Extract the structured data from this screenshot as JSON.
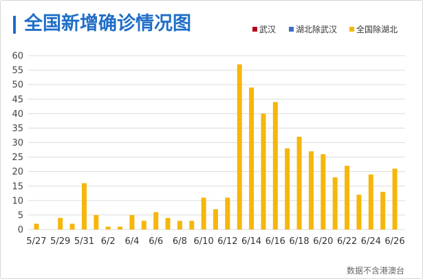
{
  "footnote": "数据不含港澳台",
  "chart_data": {
    "type": "bar",
    "stacked": true,
    "title": "全国新增确诊情况图",
    "xlabel": "",
    "ylabel": "",
    "ylim": [
      0,
      60
    ],
    "yticks": [
      0,
      5,
      10,
      15,
      20,
      25,
      30,
      35,
      40,
      45,
      50,
      55,
      60
    ],
    "grid": true,
    "legend_position": "top-right",
    "categories": [
      "5/27",
      "5/28",
      "5/29",
      "5/30",
      "5/31",
      "6/1",
      "6/2",
      "6/3",
      "6/4",
      "6/5",
      "6/6",
      "6/7",
      "6/8",
      "6/9",
      "6/10",
      "6/11",
      "6/12",
      "6/13",
      "6/14",
      "6/15",
      "6/16",
      "6/17",
      "6/18",
      "6/19",
      "6/20",
      "6/21",
      "6/22",
      "6/23",
      "6/24",
      "6/25",
      "6/26"
    ],
    "xticks": [
      "5/27",
      "5/29",
      "5/31",
      "6/2",
      "6/4",
      "6/6",
      "6/8",
      "6/10",
      "6/12",
      "6/14",
      "6/16",
      "6/18",
      "6/20",
      "6/22",
      "6/24",
      "6/26"
    ],
    "series": [
      {
        "name": "武汉",
        "color": "#b8001f",
        "values": [
          0,
          0,
          0,
          0,
          0,
          0,
          0,
          0,
          0,
          0,
          0,
          0,
          0,
          0,
          0,
          0,
          0,
          0,
          0,
          0,
          0,
          0,
          0,
          0,
          0,
          0,
          0,
          0,
          0,
          0,
          0
        ]
      },
      {
        "name": "湖北除武汉",
        "color": "#3b6fc4",
        "values": [
          0,
          0,
          0,
          0,
          0,
          0,
          0,
          0,
          0,
          0,
          0,
          0,
          0,
          0,
          0,
          0,
          0,
          0,
          0,
          0,
          0,
          0,
          0,
          0,
          0,
          0,
          0,
          0,
          0,
          0,
          0
        ]
      },
      {
        "name": "全国除湖北",
        "color": "#f6b60b",
        "values": [
          2,
          0,
          4,
          2,
          16,
          5,
          1,
          1,
          5,
          3,
          6,
          4,
          3,
          3,
          11,
          7,
          11,
          57,
          49,
          40,
          44,
          28,
          32,
          27,
          26,
          18,
          22,
          12,
          19,
          13,
          21
        ]
      }
    ]
  }
}
